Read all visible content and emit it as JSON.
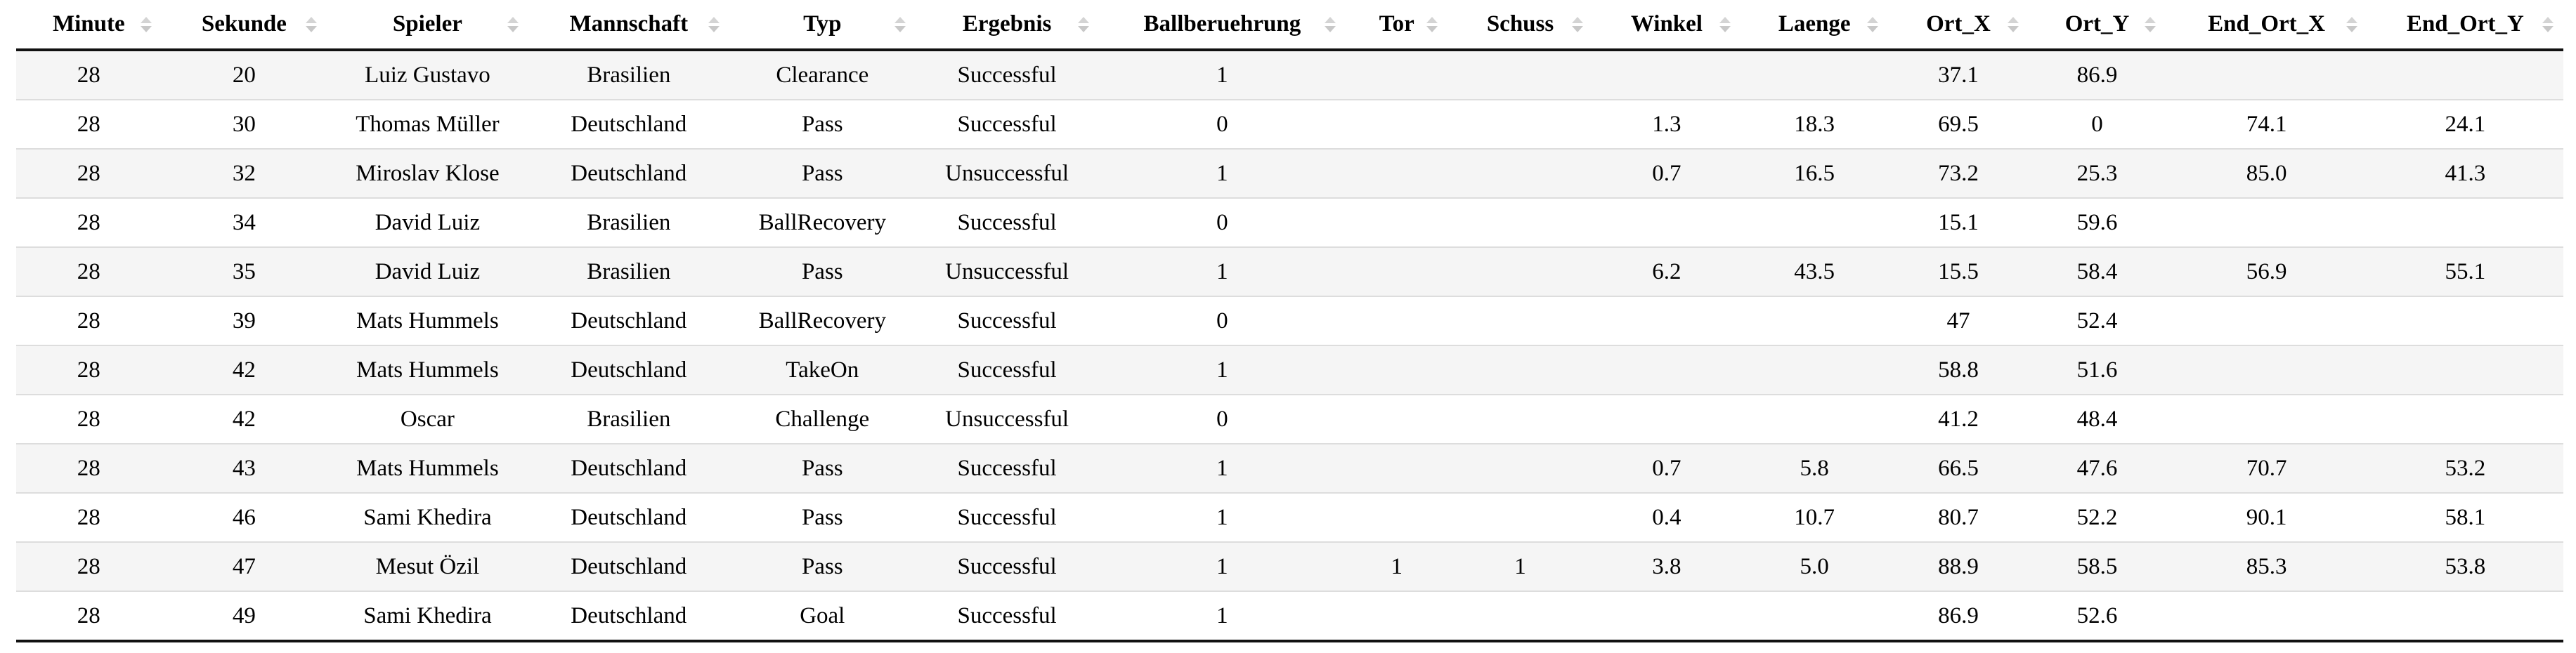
{
  "table": {
    "columns": [
      {
        "label": "Minute"
      },
      {
        "label": "Sekunde"
      },
      {
        "label": "Spieler"
      },
      {
        "label": "Mannschaft"
      },
      {
        "label": "Typ"
      },
      {
        "label": "Ergebnis"
      },
      {
        "label": "Ballberuehrung"
      },
      {
        "label": "Tor"
      },
      {
        "label": "Schuss"
      },
      {
        "label": "Winkel"
      },
      {
        "label": "Laenge"
      },
      {
        "label": "Ort_X"
      },
      {
        "label": "Ort_Y"
      },
      {
        "label": "End_Ort_X"
      },
      {
        "label": "End_Ort_Y"
      }
    ],
    "sort_icon": "up-down-sort-arrows",
    "rows": [
      [
        "28",
        "20",
        "Luiz Gustavo",
        "Brasilien",
        "Clearance",
        "Successful",
        "1",
        "",
        "",
        "",
        "",
        "37.1",
        "86.9",
        "",
        ""
      ],
      [
        "28",
        "30",
        "Thomas Müller",
        "Deutschland",
        "Pass",
        "Successful",
        "0",
        "",
        "",
        "1.3",
        "18.3",
        "69.5",
        "0",
        "74.1",
        "24.1"
      ],
      [
        "28",
        "32",
        "Miroslav Klose",
        "Deutschland",
        "Pass",
        "Unsuccessful",
        "1",
        "",
        "",
        "0.7",
        "16.5",
        "73.2",
        "25.3",
        "85.0",
        "41.3"
      ],
      [
        "28",
        "34",
        "David Luiz",
        "Brasilien",
        "BallRecovery",
        "Successful",
        "0",
        "",
        "",
        "",
        "",
        "15.1",
        "59.6",
        "",
        ""
      ],
      [
        "28",
        "35",
        "David Luiz",
        "Brasilien",
        "Pass",
        "Unsuccessful",
        "1",
        "",
        "",
        "6.2",
        "43.5",
        "15.5",
        "58.4",
        "56.9",
        "55.1"
      ],
      [
        "28",
        "39",
        "Mats Hummels",
        "Deutschland",
        "BallRecovery",
        "Successful",
        "0",
        "",
        "",
        "",
        "",
        "47",
        "52.4",
        "",
        ""
      ],
      [
        "28",
        "42",
        "Mats Hummels",
        "Deutschland",
        "TakeOn",
        "Successful",
        "1",
        "",
        "",
        "",
        "",
        "58.8",
        "51.6",
        "",
        ""
      ],
      [
        "28",
        "42",
        "Oscar",
        "Brasilien",
        "Challenge",
        "Unsuccessful",
        "0",
        "",
        "",
        "",
        "",
        "41.2",
        "48.4",
        "",
        ""
      ],
      [
        "28",
        "43",
        "Mats Hummels",
        "Deutschland",
        "Pass",
        "Successful",
        "1",
        "",
        "",
        "0.7",
        "5.8",
        "66.5",
        "47.6",
        "70.7",
        "53.2"
      ],
      [
        "28",
        "46",
        "Sami Khedira",
        "Deutschland",
        "Pass",
        "Successful",
        "1",
        "",
        "",
        "0.4",
        "10.7",
        "80.7",
        "52.2",
        "90.1",
        "58.1"
      ],
      [
        "28",
        "47",
        "Mesut Özil",
        "Deutschland",
        "Pass",
        "Successful",
        "1",
        "1",
        "1",
        "3.8",
        "5.0",
        "88.9",
        "58.5",
        "85.3",
        "53.8"
      ],
      [
        "28",
        "49",
        "Sami Khedira",
        "Deutschland",
        "Goal",
        "Successful",
        "1",
        "",
        "",
        "",
        "",
        "86.9",
        "52.6",
        "",
        ""
      ]
    ]
  },
  "colors": {
    "stripe_row": "#f5f5f5",
    "row_divider": "#dddddd",
    "heavy_border": "#111111",
    "sort_icon": "#cccccc",
    "text": "#000000"
  }
}
